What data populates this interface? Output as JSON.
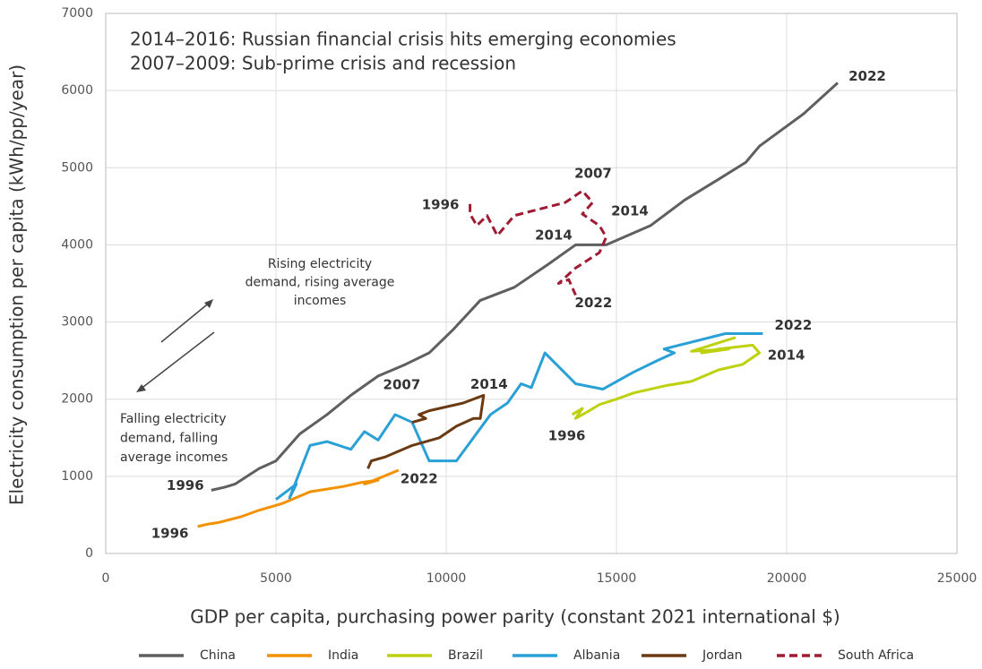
{
  "chart_data": {
    "type": "line",
    "annotations": {
      "header": [
        "2014–2016: Russian financial crisis hits emerging economies",
        "2007–2009: Sub-prime crisis and recession"
      ],
      "rising": [
        "Rising electricity",
        "demand, rising average",
        "incomes"
      ],
      "falling": [
        "Falling electricity",
        "demand, falling",
        "average incomes"
      ]
    },
    "xlabel": "GDP per capita, purchasing power parity (constant 2021 international $)",
    "ylabel": "Electricity consumption per capita (kWh/pp/year)",
    "xlim": [
      0,
      25000
    ],
    "xticks": [
      0,
      5000,
      10000,
      15000,
      20000,
      25000
    ],
    "ylim": [
      0,
      7000
    ],
    "yticks": [
      0,
      1000,
      2000,
      3000,
      4000,
      5000,
      6000,
      7000
    ],
    "grid": true,
    "series": [
      {
        "name": "China",
        "color": "#5f5f5f",
        "dashed": false,
        "x": [
          3100,
          3500,
          3800,
          4500,
          5000,
          5700,
          6500,
          7200,
          8000,
          8800,
          9500,
          10200,
          11000,
          12000,
          13000,
          13800,
          14700,
          16000,
          17000,
          18000,
          18800,
          19200,
          20500,
          21500
        ],
        "values": [
          820,
          860,
          900,
          1100,
          1200,
          1550,
          1800,
          2050,
          2300,
          2450,
          2600,
          2900,
          3280,
          3450,
          3750,
          4000,
          4000,
          4250,
          4580,
          4850,
          5070,
          5280,
          5700,
          6100
        ],
        "point_labels": [
          {
            "index": 0,
            "text": "1996"
          },
          {
            "index": 9,
            "text": "2007"
          },
          {
            "index": 14,
            "text": "2014"
          },
          {
            "index": 23,
            "text": "2022"
          }
        ]
      },
      {
        "name": "India",
        "color": "#f39200",
        "dashed": false,
        "x": [
          2700,
          3000,
          3300,
          4000,
          4500,
          5200,
          6000,
          7000,
          7500,
          8000,
          7600,
          8000,
          8600
        ],
        "values": [
          350,
          380,
          400,
          480,
          560,
          650,
          800,
          870,
          920,
          950,
          900,
          970,
          1080
        ],
        "point_labels": [
          {
            "index": 0,
            "text": "1996"
          },
          {
            "index": 12,
            "text": "2022"
          }
        ]
      },
      {
        "name": "Brazil",
        "color": "#bdd10e",
        "dashed": false,
        "x": [
          13700,
          14000,
          13800,
          14200,
          14500,
          15000,
          15500,
          16500,
          17200,
          18000,
          18700,
          19200,
          19000,
          18000,
          17500,
          18300,
          17200,
          18500
        ],
        "values": [
          1800,
          1880,
          1750,
          1850,
          1930,
          2000,
          2080,
          2180,
          2230,
          2380,
          2450,
          2600,
          2700,
          2650,
          2600,
          2650,
          2620,
          2800
        ],
        "point_labels": [
          {
            "index": 0,
            "text": "1996"
          },
          {
            "index": 11,
            "text": "2014"
          }
        ]
      },
      {
        "name": "Albania",
        "color": "#2aa0d6",
        "dashed": false,
        "x": [
          5000,
          5600,
          5400,
          6000,
          6500,
          7200,
          7600,
          8000,
          8500,
          9000,
          9500,
          10300,
          11300,
          11800,
          12200,
          12500,
          12900,
          13800,
          14600,
          15500,
          16200,
          16700,
          16400,
          18200,
          19300
        ],
        "values": [
          700,
          900,
          720,
          1400,
          1450,
          1350,
          1580,
          1470,
          1800,
          1700,
          1200,
          1200,
          1800,
          1950,
          2200,
          2150,
          2600,
          2200,
          2130,
          2350,
          2500,
          2600,
          2650,
          2850,
          2850
        ],
        "point_labels": [
          {
            "index": 24,
            "text": "2022"
          }
        ]
      },
      {
        "name": "Jordan",
        "color": "#6b3a13",
        "dashed": false,
        "x": [
          7700,
          7800,
          8200,
          9000,
          9800,
          10300,
          10800,
          11000,
          11100,
          10500,
          9500,
          9200,
          9400,
          9000
        ],
        "values": [
          1100,
          1200,
          1250,
          1400,
          1500,
          1650,
          1750,
          1750,
          2050,
          1950,
          1850,
          1800,
          1750,
          1700
        ],
        "point_labels": [
          {
            "index": 8,
            "text": "2014"
          }
        ]
      },
      {
        "name": "South Africa",
        "color": "#9e1b32",
        "dashed": true,
        "x": [
          10700,
          10700,
          10900,
          11200,
          11500,
          12000,
          13500,
          14000,
          14300,
          14000,
          14500,
          14700,
          14500,
          13800,
          13300,
          13600,
          13800
        ],
        "values": [
          4530,
          4400,
          4250,
          4380,
          4120,
          4380,
          4550,
          4700,
          4550,
          4400,
          4250,
          4100,
          3900,
          3700,
          3500,
          3550,
          3350
        ],
        "point_labels": [
          {
            "index": 0,
            "text": "1996"
          },
          {
            "index": 7,
            "text": "2007"
          },
          {
            "index": 10,
            "text": "2014"
          },
          {
            "index": 16,
            "text": "2022"
          }
        ]
      }
    ]
  }
}
